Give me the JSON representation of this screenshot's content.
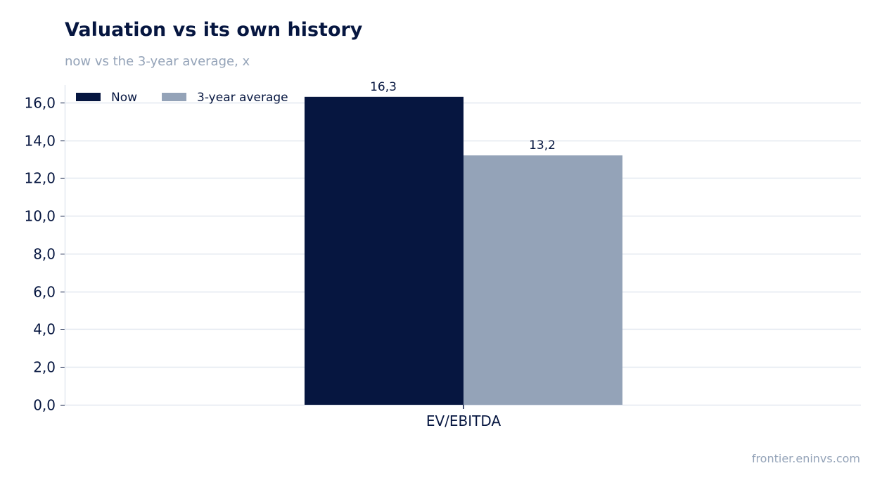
{
  "header": {
    "title": "Valuation vs its own history",
    "subtitle": "now vs the 3-year average, x"
  },
  "footer": {
    "source": "frontier.eninvs.com"
  },
  "colors": {
    "now": "#061640",
    "average": "#94a3b8",
    "grid": "#e2e8f0",
    "text": "#061640",
    "muted": "#94a3b8"
  },
  "chart_data": {
    "type": "bar",
    "categories": [
      "EV/EBITDA"
    ],
    "series": [
      {
        "name": "Now",
        "values": [
          16.3
        ],
        "labels": [
          "16,3"
        ]
      },
      {
        "name": "3-year average",
        "values": [
          13.2
        ],
        "labels": [
          "13,2"
        ]
      }
    ],
    "ylim": [
      0,
      17
    ],
    "yticks": [
      0,
      2,
      4,
      6,
      8,
      10,
      12,
      14,
      16
    ],
    "ytick_labels": [
      "0,0",
      "2,0",
      "4,0",
      "6,0",
      "8,0",
      "10,0",
      "12,0",
      "14,0",
      "16,0"
    ],
    "grid": true,
    "legend_position": "top-left"
  }
}
